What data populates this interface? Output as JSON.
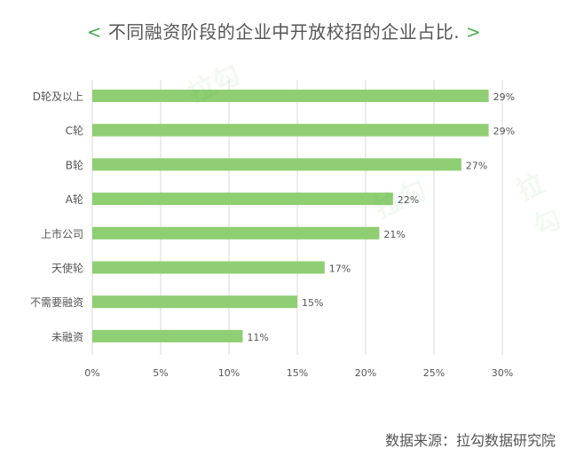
{
  "title": {
    "left_bracket": "<",
    "text": "不同融资阶段的企业中开放校招的企业占比.",
    "right_bracket": ">"
  },
  "source": "数据来源：拉勾数据研究院",
  "watermark": "拉勾",
  "colors": {
    "bar": "#8fce72",
    "bracket": "#4caf50",
    "text": "#555555",
    "grid": "#d9d9d9"
  },
  "chart_data": {
    "type": "bar",
    "orientation": "horizontal",
    "categories": [
      "D轮及以上",
      "C轮",
      "B轮",
      "A轮",
      "上市公司",
      "天使轮",
      "不需要融资",
      "未融资"
    ],
    "values": [
      29,
      29,
      27,
      22,
      21,
      17,
      15,
      11
    ],
    "value_labels": [
      "29%",
      "29%",
      "27%",
      "22%",
      "21%",
      "17%",
      "15%",
      "11%"
    ],
    "x_ticks": [
      "0%",
      "5%",
      "10%",
      "15%",
      "20%",
      "25%",
      "30%"
    ],
    "xlim": [
      0,
      30
    ],
    "grid": true
  }
}
